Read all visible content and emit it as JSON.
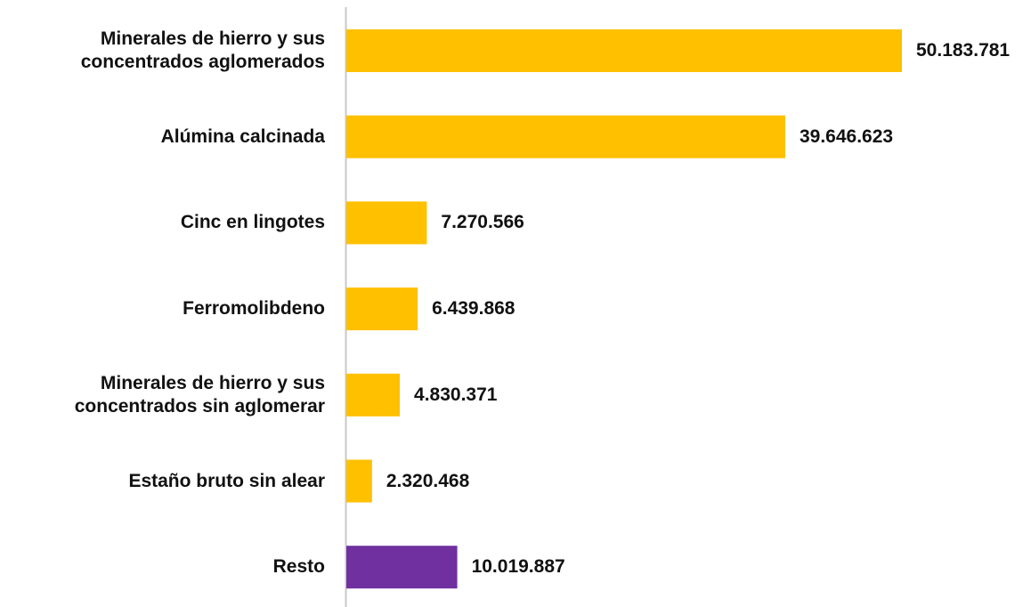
{
  "chart_data": {
    "type": "bar",
    "orientation": "horizontal",
    "categories": [
      "Minerales de hierro y sus\nconcentrados aglomerados",
      "Alúmina calcinada",
      "Cinc en lingotes",
      "Ferromolibdeno",
      "Minerales de hierro y sus\nconcentrados sin aglomerar",
      "Estaño bruto sin alear",
      "Resto"
    ],
    "values": [
      50183781,
      39646623,
      7270566,
      6439868,
      4830371,
      2320468,
      10019887
    ],
    "value_labels": [
      "50.183.781",
      "39.646.623",
      "7.270.566",
      "6.439.868",
      "4.830.371",
      "2.320.468",
      "10.019.887"
    ],
    "colors": [
      "#FFC000",
      "#FFC000",
      "#FFC000",
      "#FFC000",
      "#FFC000",
      "#FFC000",
      "#7030A0"
    ]
  }
}
